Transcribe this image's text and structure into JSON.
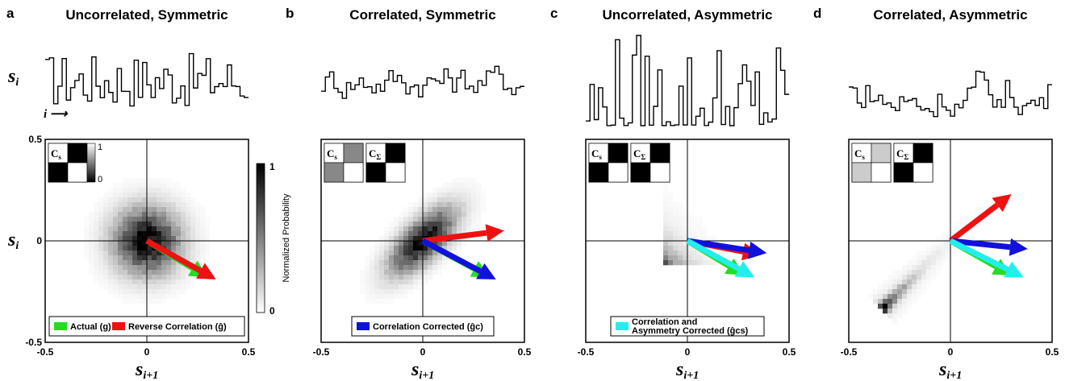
{
  "panels": [
    {
      "letter": "a",
      "title": "Uncorrelated, Symmetric",
      "dist": "uncorr-sym",
      "matrices": [
        {
          "label": "Cs",
          "cells": [
            "#ffffff",
            "#000000",
            "#000000",
            "#ffffff"
          ]
        }
      ],
      "legend": [
        {
          "color": "#22dd22",
          "text": "Actual (g)"
        },
        {
          "color": "#ee1111",
          "text": "Reverse Correlation (ĝ)"
        }
      ],
      "arrows": [
        {
          "color": "#22dd22",
          "dx": 0.3,
          "dy": -0.18
        },
        {
          "color": "#ee1111",
          "dx": 0.34,
          "dy": -0.19
        }
      ]
    },
    {
      "letter": "b",
      "title": "Correlated, Symmetric",
      "dist": "corr-sym",
      "matrices": [
        {
          "label": "Cs",
          "cells": [
            "#ffffff",
            "#888888",
            "#888888",
            "#ffffff"
          ]
        },
        {
          "label": "CΣ",
          "cells": [
            "#ffffff",
            "#000000",
            "#000000",
            "#ffffff"
          ]
        }
      ],
      "legend": [
        {
          "color": "#1111dd",
          "text": "Correlation Corrected (ĝc)"
        }
      ],
      "arrows": [
        {
          "color": "#ee1111",
          "dx": 0.4,
          "dy": 0.05
        },
        {
          "color": "#22dd22",
          "dx": 0.33,
          "dy": -0.18
        },
        {
          "color": "#1111dd",
          "dx": 0.36,
          "dy": -0.19
        }
      ]
    },
    {
      "letter": "c",
      "title": "Uncorrelated, Asymmetric",
      "dist": "uncorr-asym",
      "matrices": [
        {
          "label": "Cs",
          "cells": [
            "#ffffff",
            "#000000",
            "#000000",
            "#ffffff"
          ]
        },
        {
          "label": "CΣ",
          "cells": [
            "#ffffff",
            "#000000",
            "#000000",
            "#ffffff"
          ]
        }
      ],
      "legend": [
        {
          "color": "#22eeee",
          "text": "Correlation and Asymmetry Corrected (ĝcs)"
        }
      ],
      "arrows": [
        {
          "color": "#ee1111",
          "dx": 0.36,
          "dy": -0.07
        },
        {
          "color": "#1111dd",
          "dx": 0.39,
          "dy": -0.06
        },
        {
          "color": "#22dd22",
          "dx": 0.28,
          "dy": -0.17
        },
        {
          "color": "#22eeee",
          "dx": 0.33,
          "dy": -0.18
        }
      ]
    },
    {
      "letter": "d",
      "title": "Correlated, Asymmetric",
      "dist": "corr-asym",
      "matrices": [
        {
          "label": "Cs",
          "cells": [
            "#ffffff",
            "#cccccc",
            "#cccccc",
            "#ffffff"
          ]
        },
        {
          "label": "CΣ",
          "cells": [
            "#ffffff",
            "#000000",
            "#000000",
            "#ffffff"
          ]
        }
      ],
      "legend": [],
      "arrows": [
        {
          "color": "#ee1111",
          "dx": 0.3,
          "dy": 0.23
        },
        {
          "color": "#1111dd",
          "dx": 0.38,
          "dy": -0.04
        },
        {
          "color": "#22dd22",
          "dx": 0.3,
          "dy": -0.17
        },
        {
          "color": "#22eeee",
          "dx": 0.36,
          "dy": -0.18
        }
      ]
    }
  ],
  "axes": {
    "xlim": [
      -0.5,
      0.5
    ],
    "ylim": [
      -0.5,
      0.5
    ],
    "xticks": [
      "-0.5",
      "0",
      "0.5"
    ],
    "yticks": [
      "0.5",
      "0",
      "-0.5"
    ],
    "xlabel_main": "s",
    "xlabel_sub": "i+1",
    "ylabel_main": "s",
    "ylabel_sub": "i",
    "trace_label_main": "s",
    "trace_label_sub": "i",
    "time_label": "i ⟶"
  },
  "colorbar": {
    "label": "Normalized Probability",
    "top": "1",
    "bottom": "0"
  },
  "mini_colorbar": {
    "top": "1",
    "bottom": "0"
  }
}
